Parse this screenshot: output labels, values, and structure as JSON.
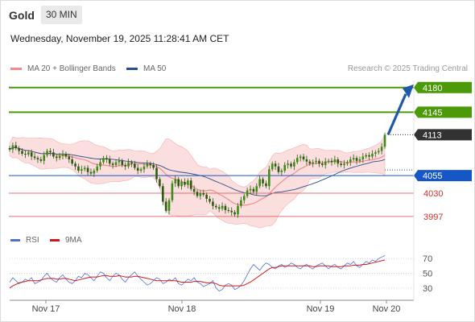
{
  "header": {
    "instrument": "Gold",
    "timeframe": "30 MIN"
  },
  "timestamp": "Wednesday, November 19, 2025 11:28:41 AM CET",
  "legend": {
    "ma20": {
      "label": "MA 20 + Bollinger Bands",
      "color": "#f08c8c"
    },
    "ma50": {
      "label": "MA 50",
      "color": "#2a4f8f"
    }
  },
  "credit": "Research © 2025 Trading Central",
  "rsi_legend": {
    "rsi": {
      "label": "RSI",
      "color": "#4f6fd6"
    },
    "ma9": {
      "label": "9MA",
      "color": "#d01818"
    }
  },
  "colors": {
    "resistance": "#4c9a0a",
    "pivot": "#1557c7",
    "support": "#e07070",
    "price": "#333333",
    "arrow": "#1f5aa6",
    "candle": "#3b8e10",
    "band": "#fbdede"
  },
  "chart_data": {
    "type": "candlestick",
    "x_labels": [
      "Nov 17",
      "Nov 18",
      "Nov 19",
      "Nov 20"
    ],
    "y_range": [
      3990,
      4190
    ],
    "levels": [
      {
        "value": 4180,
        "label": "4180",
        "kind": "resistance"
      },
      {
        "value": 4145,
        "label": "4145",
        "kind": "resistance"
      },
      {
        "value": 4113,
        "label": "4113",
        "kind": "price"
      },
      {
        "value": 4055,
        "label": "4055",
        "kind": "pivot"
      },
      {
        "value": 4030,
        "label": "4030",
        "kind": "support"
      },
      {
        "value": 3997,
        "label": "3997",
        "kind": "support"
      }
    ],
    "price_path": [
      4092,
      4098,
      4094,
      4090,
      4086,
      4085,
      4088,
      4082,
      4080,
      4078,
      4076,
      4084,
      4090,
      4088,
      4082,
      4080,
      4083,
      4086,
      4082,
      4078,
      4072,
      4068,
      4062,
      4064,
      4066,
      4060,
      4058,
      4062,
      4068,
      4074,
      4080,
      4078,
      4072,
      4070,
      4074,
      4076,
      4070,
      4068,
      4074,
      4072,
      4066,
      4062,
      4064,
      4068,
      4072,
      4070,
      4066,
      4050,
      4040,
      4018,
      4005,
      4020,
      4044,
      4050,
      4040,
      4046,
      4042,
      4048,
      4036,
      4032,
      4026,
      4030,
      4028,
      4022,
      4018,
      4012,
      4010,
      4008,
      4012,
      4006,
      4005,
      4003,
      4000,
      4012,
      4020,
      4026,
      4034,
      4036,
      4032,
      4040,
      4050,
      4044,
      4040,
      4064,
      4072,
      4068,
      4060,
      4062,
      4070,
      4072,
      4068,
      4074,
      4080,
      4082,
      4078,
      4075,
      4072,
      4074,
      4076,
      4072,
      4070,
      4075,
      4076,
      4074,
      4078,
      4072,
      4070,
      4072,
      4074,
      4078,
      4080,
      4076,
      4078,
      4082,
      4084,
      4082,
      4086,
      4088,
      4090,
      4096,
      4113
    ],
    "forecast_target": 4180,
    "rsi": {
      "levels": [
        30,
        50,
        70
      ],
      "values": [
        38,
        44,
        40,
        36,
        38,
        42,
        40,
        44,
        36,
        38,
        40,
        46,
        50,
        44,
        40,
        38,
        44,
        48,
        42,
        38,
        36,
        40,
        46,
        44,
        50,
        48,
        44,
        40,
        46,
        52,
        50,
        44,
        40,
        46,
        50,
        48,
        42,
        38,
        44,
        48,
        52,
        46,
        42,
        38,
        34,
        36,
        40,
        44,
        42,
        36,
        38,
        42,
        40,
        44,
        36,
        34,
        38,
        42,
        40,
        44,
        38,
        36,
        32,
        34,
        36,
        40,
        30,
        26,
        28,
        34,
        36,
        34,
        28,
        30,
        34,
        40,
        48,
        56,
        62,
        58,
        54,
        60,
        64,
        62,
        58,
        56,
        60,
        62,
        58,
        60,
        64,
        62,
        58,
        56,
        60,
        62,
        58,
        56,
        60,
        62,
        64,
        60,
        56,
        60,
        62,
        58,
        56,
        60,
        64,
        62,
        66,
        60,
        58,
        62,
        66,
        64,
        68,
        66,
        70,
        72,
        74
      ],
      "ma9": [
        30,
        33,
        35,
        37,
        38,
        39,
        40,
        40,
        40,
        40,
        41,
        42,
        43,
        43,
        43,
        42,
        42,
        43,
        43,
        42,
        41,
        40,
        41,
        42,
        43,
        44,
        45,
        45,
        45,
        46,
        47,
        47,
        46,
        46,
        46,
        47,
        46,
        45,
        45,
        45,
        46,
        46,
        45,
        44,
        43,
        42,
        41,
        40,
        40,
        40,
        40,
        40,
        40,
        40,
        39,
        38,
        38,
        38,
        38,
        39,
        39,
        39,
        38,
        37,
        37,
        37,
        36,
        34,
        33,
        33,
        33,
        33,
        33,
        33,
        33,
        34,
        36,
        38,
        41,
        44,
        47,
        50,
        53,
        56,
        58,
        58,
        59,
        60,
        60,
        60,
        60,
        60,
        60,
        60,
        60,
        60,
        60,
        59,
        59,
        60,
        60,
        60,
        60,
        59,
        59,
        59,
        59,
        60,
        60,
        60,
        61,
        61,
        61,
        62,
        62,
        63,
        64,
        65,
        66,
        67,
        68
      ]
    }
  }
}
